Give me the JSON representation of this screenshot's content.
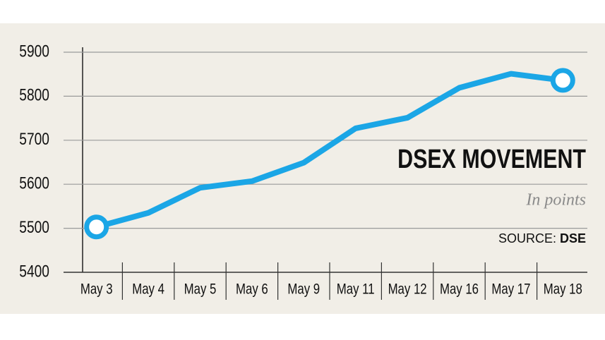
{
  "chart_data": {
    "type": "line",
    "title": "DSEX MOVEMENT",
    "subtitle": "In points",
    "source_label": "SOURCE:",
    "source": "DSE",
    "categories": [
      "May 3",
      "May 4",
      "May 5",
      "May 6",
      "May 9",
      "May 11",
      "May 12",
      "May 16",
      "May 17",
      "May 18"
    ],
    "values": [
      5503,
      5535,
      5592,
      5607,
      5649,
      5727,
      5751,
      5819,
      5851,
      5836
    ],
    "color": "#1ba6e6",
    "ylim": [
      5400,
      5900
    ],
    "yticks": [
      5400,
      5500,
      5600,
      5700,
      5800,
      5900
    ],
    "grid": true
  }
}
